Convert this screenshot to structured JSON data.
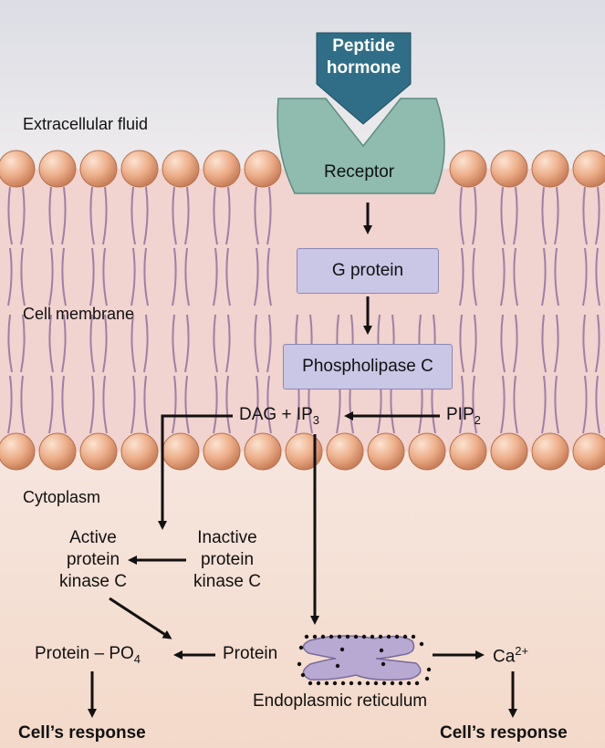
{
  "regions": {
    "extracellular": "Extracellular fluid",
    "membrane": "Cell membrane",
    "cytoplasm": "Cytoplasm"
  },
  "hormone": {
    "line1": "Peptide",
    "line2": "hormone"
  },
  "receptor": "Receptor",
  "g_protein": "G protein",
  "phospholipase": "Phospholipase C",
  "dag_ip3": {
    "text": "DAG + IP",
    "sub": "3"
  },
  "pip2": {
    "text": "PIP",
    "sub": "2"
  },
  "active_pkc": {
    "line1": "Active",
    "line2": "protein",
    "line3": "kinase C"
  },
  "inactive_pkc": {
    "line1": "Inactive",
    "line2": "protein",
    "line3": "kinase C"
  },
  "protein_po4": {
    "text": "Protein – PO",
    "sub": "4"
  },
  "protein": "Protein",
  "er": "Endoplasmic reticulum",
  "calcium": {
    "text": "Ca",
    "sup": "2+"
  },
  "response_left": "Cell’s response",
  "response_right": "Cell’s response",
  "colors": {
    "hormone": "#2f6e86",
    "receptor": "#8fbcaf",
    "box": "#c9c6e6",
    "head": "#e8a47c",
    "tail": "#9e7fa6",
    "membrane": "#f1d0cc",
    "er": "#b8a9d3"
  }
}
